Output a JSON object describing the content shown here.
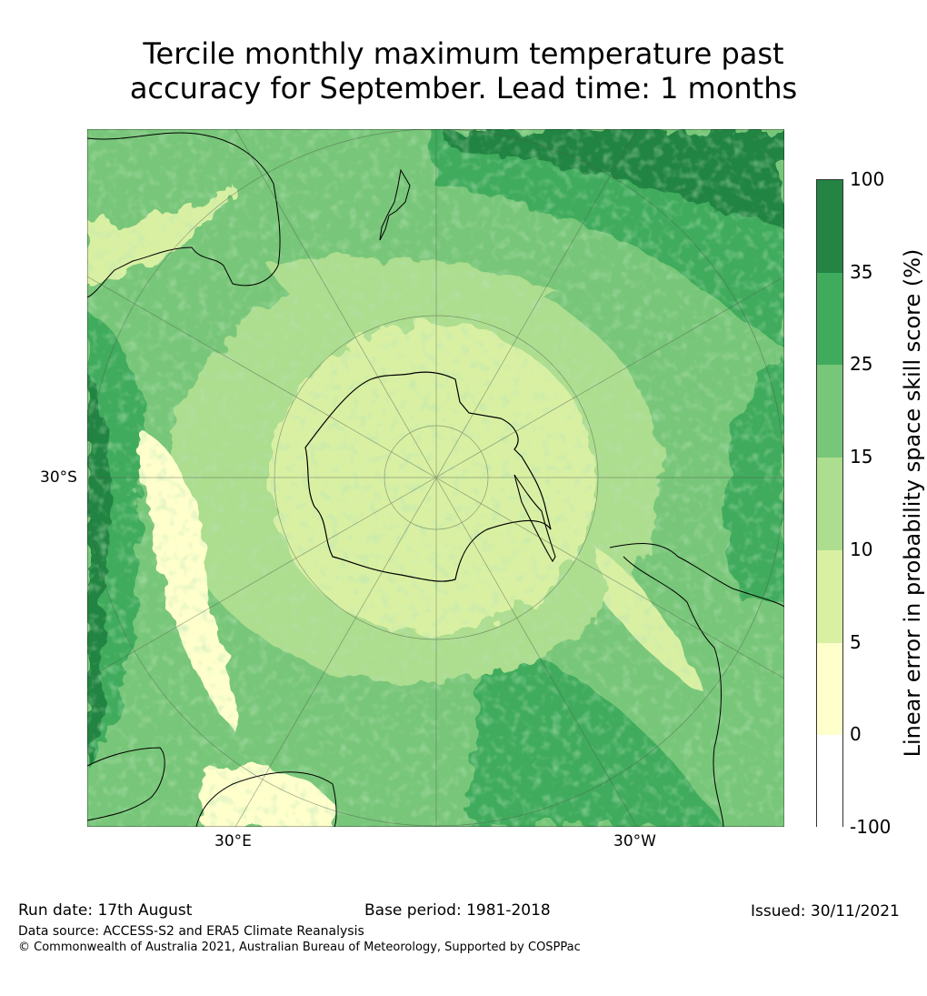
{
  "title": {
    "line1": "Tercile monthly maximum temperature past",
    "line2": "accuracy for September. Lead time: 1 months"
  },
  "map": {
    "projection": "south-polar-stereographic",
    "tick_labels": {
      "lat": "30°S",
      "lon_east": "30°E",
      "lon_west": "30°W"
    }
  },
  "colorbar": {
    "axis_label": "Linear error in probability space skill score (%)",
    "bounds": [
      "-100",
      "0",
      "5",
      "10",
      "15",
      "25",
      "35",
      "100"
    ],
    "colors": [
      "#ffffff",
      "#ffffcc",
      "#d9f0a3",
      "#addd8e",
      "#78c679",
      "#41ab5d",
      "#238443"
    ]
  },
  "footer": {
    "run_date": "Run date: 17th August",
    "base_period": "Base period: 1981-2018",
    "issued": "Issued: 30/11/2021",
    "data_source": "Data source: ACCESS-S2 and ERA5 Climate Reanalysis",
    "copyright": "© Commonwealth of Australia 2021, Australian Bureau of Meteorology, Supported by COSPPac"
  }
}
